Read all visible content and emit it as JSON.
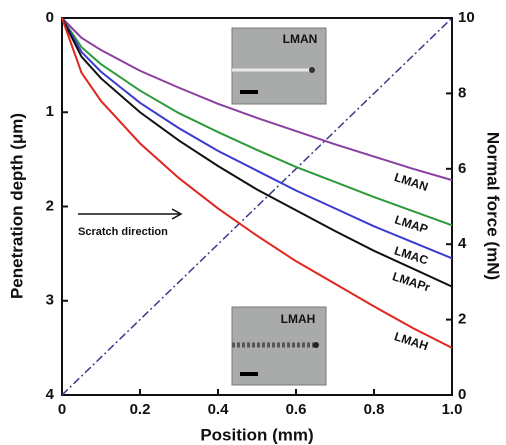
{
  "chart_data": {
    "type": "line",
    "x_label": "Position (mm)",
    "y_label": "Penetration depth (μm)",
    "y2_label": "Normal force (mN)",
    "x": [
      0,
      0.05,
      0.1,
      0.2,
      0.3,
      0.4,
      0.5,
      0.6,
      0.7,
      0.8,
      0.9,
      1.0
    ],
    "series": [
      {
        "name": "LMAN",
        "color": "#8b3fa0",
        "values": [
          0,
          0.21,
          0.34,
          0.56,
          0.74,
          0.91,
          1.06,
          1.2,
          1.34,
          1.47,
          1.6,
          1.72
        ]
      },
      {
        "name": "LMAP",
        "color": "#2e9a3a",
        "values": [
          0,
          0.31,
          0.49,
          0.77,
          1.01,
          1.21,
          1.4,
          1.58,
          1.74,
          1.9,
          2.05,
          2.2
        ]
      },
      {
        "name": "LMAC",
        "color": "#3b3bd0",
        "values": [
          0,
          0.36,
          0.57,
          0.9,
          1.17,
          1.41,
          1.62,
          1.83,
          2.02,
          2.21,
          2.38,
          2.55
        ]
      },
      {
        "name": "LMAPr",
        "color": "#111111",
        "values": [
          0,
          0.41,
          0.64,
          1.0,
          1.3,
          1.57,
          1.82,
          2.04,
          2.26,
          2.47,
          2.66,
          2.85
        ]
      },
      {
        "name": "LMAH",
        "color": "#e0261e",
        "values": [
          0,
          0.58,
          0.88,
          1.33,
          1.7,
          2.02,
          2.31,
          2.58,
          2.82,
          3.06,
          3.29,
          3.5
        ]
      }
    ],
    "reference_line": {
      "x": [
        0,
        1
      ],
      "values": [
        0,
        10
      ],
      "axis": "y2",
      "color": "#3a3a8c",
      "dash": "dashdot"
    },
    "xlim": [
      0,
      1
    ],
    "xticks": [
      0,
      0.2,
      0.4,
      0.6,
      0.8,
      {
        "value": 1,
        "label": "1.0"
      }
    ],
    "ylim": [
      0,
      4
    ],
    "yticks": [
      0,
      1,
      2,
      3,
      4
    ],
    "y_inverted": true,
    "y2lim": [
      0,
      10
    ],
    "y2ticks": [
      0,
      2,
      4,
      6,
      8,
      10
    ],
    "annotations": {
      "scratch": "Scratch direction",
      "inset_top": "LMAN",
      "inset_bottom": "LMAH"
    }
  }
}
